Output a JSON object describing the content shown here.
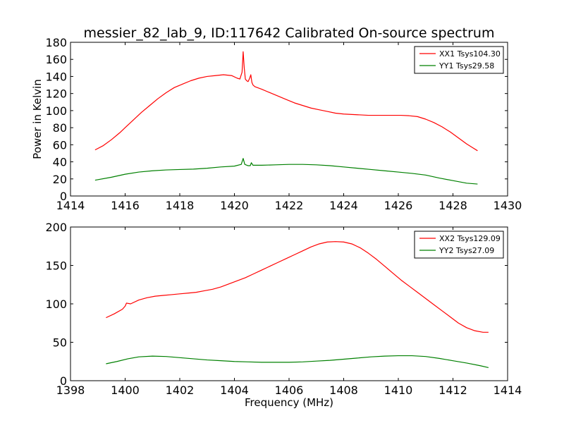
{
  "figure": {
    "title": "messier_82_lab_9, ID:117642 Calibrated On-source spectrum"
  },
  "chart_data": [
    {
      "type": "line",
      "title": "messier_82_lab_9, ID:117642 Calibrated On-source spectrum",
      "xlabel": "",
      "ylabel": "Power in Kelvin",
      "xlim": [
        1414,
        1430
      ],
      "ylim": [
        0,
        180
      ],
      "xticks": [
        1414,
        1416,
        1418,
        1420,
        1422,
        1424,
        1426,
        1428,
        1430
      ],
      "yticks": [
        0,
        20,
        40,
        60,
        80,
        100,
        120,
        140,
        160,
        180
      ],
      "grid": false,
      "legend_position": "top-right",
      "series": [
        {
          "name": "XX1 Tsys104.30",
          "color": "#ff0000",
          "x": [
            1414.9,
            1415.2,
            1415.5,
            1415.8,
            1416.0,
            1416.3,
            1416.6,
            1416.9,
            1417.2,
            1417.5,
            1417.8,
            1418.1,
            1418.4,
            1418.7,
            1419.0,
            1419.3,
            1419.6,
            1419.9,
            1420.1,
            1420.2,
            1420.28,
            1420.32,
            1420.36,
            1420.4,
            1420.45,
            1420.5,
            1420.56,
            1420.6,
            1420.64,
            1420.68,
            1420.75,
            1421.0,
            1421.3,
            1421.6,
            1421.9,
            1422.2,
            1422.5,
            1422.8,
            1423.1,
            1423.4,
            1423.7,
            1424.0,
            1424.3,
            1424.6,
            1424.9,
            1425.2,
            1425.5,
            1425.8,
            1426.1,
            1426.4,
            1426.7,
            1427.0,
            1427.3,
            1427.6,
            1427.9,
            1428.2,
            1428.5,
            1428.7,
            1428.9
          ],
          "y": [
            54,
            59,
            66,
            74,
            80,
            89,
            98,
            106,
            114,
            121,
            127,
            131,
            135,
            138,
            140,
            141,
            142,
            141,
            138,
            137,
            145,
            169,
            150,
            137,
            135,
            134,
            138,
            142,
            133,
            130,
            128,
            125,
            121,
            117,
            113,
            109,
            106,
            103,
            101,
            99,
            97,
            96,
            95.5,
            95,
            94.5,
            94.5,
            94.5,
            94.5,
            94.5,
            94,
            93,
            90,
            86,
            81,
            75,
            68,
            61,
            57,
            53
          ]
        },
        {
          "name": "YY1 Tsys29.58",
          "color": "#008000",
          "x": [
            1414.9,
            1415.5,
            1416.0,
            1416.5,
            1417.0,
            1417.5,
            1418.0,
            1418.5,
            1419.0,
            1419.5,
            1420.0,
            1420.25,
            1420.32,
            1420.38,
            1420.5,
            1420.58,
            1420.62,
            1420.68,
            1421.0,
            1421.5,
            1422.0,
            1422.5,
            1423.0,
            1423.5,
            1424.0,
            1424.5,
            1425.0,
            1425.5,
            1426.0,
            1426.5,
            1427.0,
            1427.5,
            1428.0,
            1428.5,
            1428.9
          ],
          "y": [
            18.5,
            22,
            25.5,
            28,
            29.5,
            30.5,
            31,
            31.5,
            32.5,
            34,
            35,
            37,
            44,
            37,
            35.5,
            35.5,
            39,
            36,
            36,
            36.5,
            37,
            37,
            36.5,
            35.5,
            34,
            32.5,
            31,
            29.5,
            28,
            26.5,
            24.5,
            21,
            18,
            15,
            14
          ]
        }
      ]
    },
    {
      "type": "line",
      "title": "",
      "xlabel": "Frequency (MHz)",
      "ylabel": "",
      "xlim": [
        1398,
        1414
      ],
      "ylim": [
        0,
        200
      ],
      "xticks": [
        1398,
        1400,
        1402,
        1404,
        1406,
        1408,
        1410,
        1412,
        1414
      ],
      "yticks": [
        0,
        50,
        100,
        150,
        200
      ],
      "grid": false,
      "legend_position": "top-right",
      "series": [
        {
          "name": "XX2 Tsys129.09",
          "color": "#ff0000",
          "x": [
            1399.3,
            1399.6,
            1399.9,
            1400.0,
            1400.05,
            1400.2,
            1400.5,
            1400.8,
            1401.1,
            1401.4,
            1401.7,
            1402.0,
            1402.3,
            1402.6,
            1402.9,
            1403.2,
            1403.5,
            1403.8,
            1404.1,
            1404.4,
            1404.7,
            1405.0,
            1405.3,
            1405.6,
            1405.9,
            1406.2,
            1406.5,
            1406.8,
            1407.1,
            1407.4,
            1407.7,
            1408.0,
            1408.3,
            1408.6,
            1408.9,
            1409.2,
            1409.5,
            1409.8,
            1410.1,
            1410.4,
            1410.7,
            1411.0,
            1411.3,
            1411.6,
            1411.9,
            1412.2,
            1412.5,
            1412.8,
            1413.1,
            1413.3
          ],
          "y": [
            82,
            87,
            93,
            97,
            101,
            100,
            105,
            108,
            110,
            111,
            112,
            113,
            114,
            115,
            117,
            119,
            122,
            126,
            130,
            134,
            139,
            144,
            149,
            154,
            159,
            164,
            169,
            174,
            178,
            180.5,
            181,
            180.5,
            178,
            173,
            166,
            158,
            149,
            140,
            131,
            123,
            115,
            107,
            99,
            91,
            83,
            75,
            69,
            65,
            63,
            63
          ]
        },
        {
          "name": "YY2 Tsys27.09",
          "color": "#008000",
          "x": [
            1399.3,
            1399.7,
            1400.1,
            1400.5,
            1401.0,
            1401.5,
            1402.0,
            1402.5,
            1403.0,
            1403.5,
            1404.0,
            1404.5,
            1405.0,
            1405.5,
            1406.0,
            1406.5,
            1407.0,
            1407.5,
            1408.0,
            1408.5,
            1409.0,
            1409.5,
            1410.0,
            1410.5,
            1411.0,
            1411.5,
            1412.0,
            1412.5,
            1413.0,
            1413.3
          ],
          "y": [
            22,
            25,
            28.5,
            31,
            32,
            31.5,
            30,
            28.5,
            27,
            26,
            25,
            24.5,
            24,
            24,
            24,
            24.5,
            25.5,
            26.5,
            28,
            29.5,
            31,
            32,
            32.5,
            32.5,
            31.5,
            29,
            26,
            23,
            19.5,
            17
          ]
        }
      ]
    }
  ]
}
